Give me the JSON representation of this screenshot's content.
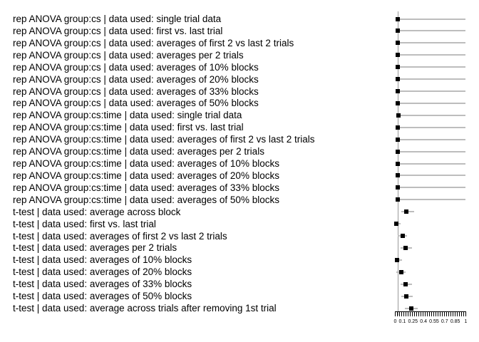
{
  "page": {
    "background": "#ffffff"
  },
  "colors": {
    "marker": "#000000",
    "error_bar": "#bdbdbd",
    "reference_line": "#9a9a9a",
    "axis": "#000000",
    "text": "#000000"
  },
  "chart_data": {
    "type": "scatter",
    "subtype": "horizontal dot plot with confidence-interval error bars",
    "title": "",
    "xlabel": "",
    "ylabel": "",
    "xlim": [
      0,
      1
    ],
    "grid": false,
    "legend": false,
    "reference_line_x": 0.04,
    "minor_tick_count": 34,
    "x_ticks": [
      {
        "label": "0",
        "value": 0
      },
      {
        "label": "0.1",
        "value": 0.1
      },
      {
        "label": "0.25",
        "value": 0.25
      },
      {
        "label": "0.4",
        "value": 0.4
      },
      {
        "label": "0.55",
        "value": 0.55
      },
      {
        "label": "0.7",
        "value": 0.7
      },
      {
        "label": "0.85",
        "value": 0.85
      },
      {
        "label": "1",
        "value": 1
      }
    ],
    "rows": [
      {
        "label": "rep ANOVA group:cs | data used: single trial data",
        "value": 0.04,
        "lo": 0.04,
        "hi": 1.0
      },
      {
        "label": "rep ANOVA group:cs | data used: first vs. last trial",
        "value": 0.04,
        "lo": 0.04,
        "hi": 1.0
      },
      {
        "label": "rep ANOVA group:cs | data used: averages of first 2 vs last 2 trials",
        "value": 0.04,
        "lo": 0.04,
        "hi": 1.0
      },
      {
        "label": "rep ANOVA group:cs | data used: averages per 2 trials",
        "value": 0.04,
        "lo": 0.04,
        "hi": 1.0
      },
      {
        "label": "rep ANOVA group:cs | data used: averages of 10% blocks",
        "value": 0.04,
        "lo": 0.04,
        "hi": 1.0
      },
      {
        "label": "rep ANOVA group:cs | data used: averages of 20% blocks",
        "value": 0.04,
        "lo": 0.04,
        "hi": 1.0
      },
      {
        "label": "rep ANOVA group:cs | data used: averages of 33% blocks",
        "value": 0.04,
        "lo": 0.04,
        "hi": 1.0
      },
      {
        "label": "rep ANOVA group:cs | data used: averages of 50% blocks",
        "value": 0.04,
        "lo": 0.04,
        "hi": 1.0
      },
      {
        "label": "rep ANOVA group:cs:time | data used: single trial data",
        "value": 0.05,
        "lo": 0.05,
        "hi": 1.0
      },
      {
        "label": "rep ANOVA group:cs:time | data used: first vs. last trial",
        "value": 0.04,
        "lo": 0.04,
        "hi": 1.0
      },
      {
        "label": "rep ANOVA group:cs:time | data used: averages of first 2 vs last 2 trials",
        "value": 0.04,
        "lo": 0.04,
        "hi": 1.0
      },
      {
        "label": "rep ANOVA group:cs:time | data used: averages per 2 trials",
        "value": 0.04,
        "lo": 0.04,
        "hi": 1.0
      },
      {
        "label": "rep ANOVA group:cs:time | data used: averages of 10% blocks",
        "value": 0.04,
        "lo": 0.04,
        "hi": 1.0
      },
      {
        "label": "rep ANOVA group:cs:time | data used: averages of 20% blocks",
        "value": 0.04,
        "lo": 0.04,
        "hi": 1.0
      },
      {
        "label": "rep ANOVA group:cs:time | data used: averages of 33% blocks",
        "value": 0.04,
        "lo": 0.04,
        "hi": 1.0
      },
      {
        "label": "rep ANOVA group:cs:time | data used: averages of 50% blocks",
        "value": 0.04,
        "lo": 0.04,
        "hi": 1.0
      },
      {
        "label": "t-test | data used: average across block",
        "value": 0.16,
        "lo": 0.09,
        "hi": 0.27
      },
      {
        "label": "t-test | data used: first vs. last trial",
        "value": 0.02,
        "lo": 0.0,
        "hi": 0.08
      },
      {
        "label": "t-test | data used: averages of first 2 vs last 2 trials",
        "value": 0.11,
        "lo": 0.04,
        "hi": 0.17
      },
      {
        "label": "t-test | data used: averages per 2 trials",
        "value": 0.15,
        "lo": 0.08,
        "hi": 0.24
      },
      {
        "label": "t-test | data used: averages of 10% blocks",
        "value": 0.03,
        "lo": 0.0,
        "hi": 0.1
      },
      {
        "label": "t-test | data used: averages of 20% blocks",
        "value": 0.09,
        "lo": 0.02,
        "hi": 0.15
      },
      {
        "label": "t-test | data used: averages of 33% blocks",
        "value": 0.15,
        "lo": 0.08,
        "hi": 0.24
      },
      {
        "label": "t-test | data used: averages of 50% blocks",
        "value": 0.16,
        "lo": 0.09,
        "hi": 0.25
      },
      {
        "label": "t-test | data used: average across trials after removing 1st trial",
        "value": 0.23,
        "lo": 0.14,
        "hi": 0.32
      }
    ]
  }
}
